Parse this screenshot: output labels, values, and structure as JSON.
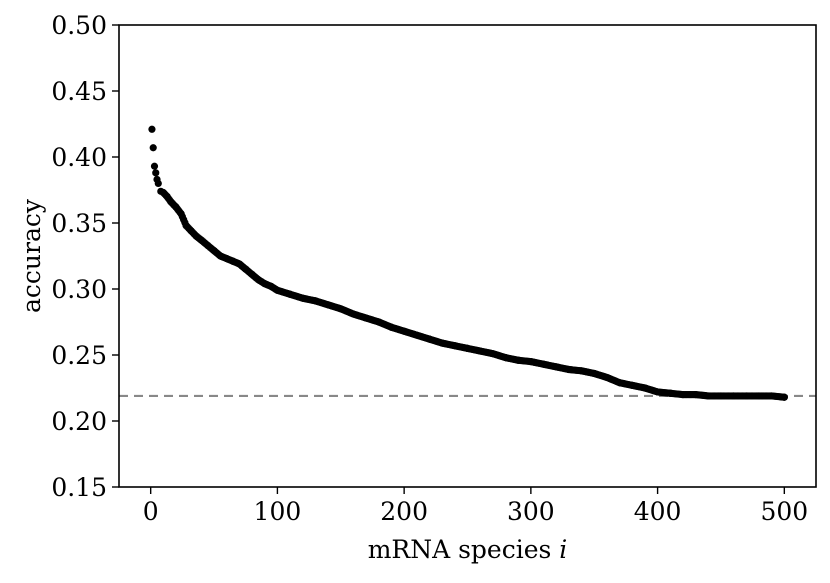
{
  "chart_data": {
    "type": "scatter",
    "title": "",
    "xlabel": "mRNA species",
    "xlabel_var": "i",
    "ylabel": "accuracy",
    "xlim": [
      -25,
      525
    ],
    "ylim": [
      0.15,
      0.5
    ],
    "x_ticks": [
      0,
      100,
      200,
      300,
      400,
      500
    ],
    "x_tick_labels": [
      "0",
      "100",
      "200",
      "300",
      "400",
      "500"
    ],
    "y_ticks": [
      0.15,
      0.2,
      0.25,
      0.3,
      0.35,
      0.4,
      0.45,
      0.5
    ],
    "y_tick_labels": [
      "0.15",
      "0.20",
      "0.25",
      "0.30",
      "0.35",
      "0.40",
      "0.45",
      "0.50"
    ],
    "grid": false,
    "baseline": {
      "value": 0.219,
      "style": "dashed",
      "color": "#888888"
    },
    "point_color": "#000000",
    "series": [
      {
        "name": "accuracy",
        "x": [
          1,
          2,
          3,
          4,
          5,
          6,
          8,
          10,
          13,
          16,
          20,
          24,
          28,
          32,
          36,
          40,
          45,
          50,
          55,
          60,
          65,
          70,
          75,
          80,
          85,
          90,
          95,
          100,
          110,
          120,
          130,
          140,
          150,
          160,
          170,
          180,
          190,
          200,
          210,
          220,
          230,
          240,
          250,
          260,
          270,
          280,
          290,
          300,
          310,
          320,
          330,
          340,
          350,
          360,
          370,
          380,
          390,
          400,
          410,
          420,
          430,
          440,
          450,
          460,
          470,
          480,
          490,
          500
        ],
        "y": [
          0.421,
          0.407,
          0.393,
          0.388,
          0.383,
          0.38,
          0.374,
          0.373,
          0.37,
          0.366,
          0.362,
          0.357,
          0.348,
          0.344,
          0.34,
          0.337,
          0.333,
          0.329,
          0.325,
          0.323,
          0.321,
          0.319,
          0.315,
          0.311,
          0.307,
          0.304,
          0.302,
          0.299,
          0.296,
          0.293,
          0.291,
          0.288,
          0.285,
          0.281,
          0.278,
          0.275,
          0.271,
          0.268,
          0.265,
          0.262,
          0.259,
          0.257,
          0.255,
          0.253,
          0.251,
          0.248,
          0.246,
          0.245,
          0.243,
          0.241,
          0.239,
          0.238,
          0.236,
          0.233,
          0.229,
          0.227,
          0.225,
          0.222,
          0.221,
          0.22,
          0.22,
          0.219,
          0.219,
          0.219,
          0.219,
          0.219,
          0.219,
          0.218
        ]
      }
    ]
  }
}
